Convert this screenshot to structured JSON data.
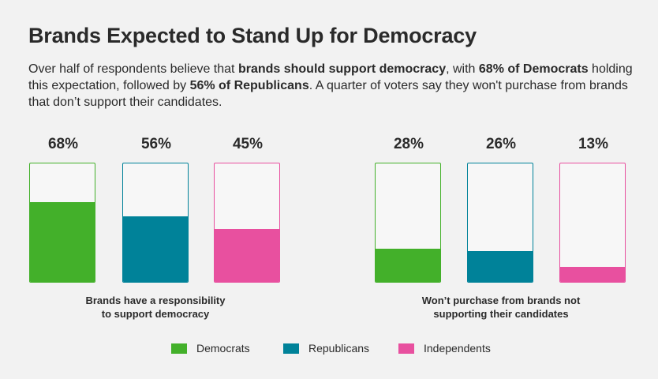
{
  "header": {
    "title": "Brands Expected to Stand Up for Democracy",
    "subtitle": {
      "t1": "Over half of respondents believe that ",
      "b1": "brands should support democracy",
      "t2": ", with ",
      "b2": "68% of Democrats",
      "t3": " holding this expectation, followed by ",
      "b3": "56% of Republicans",
      "t4": ". A quarter of voters say they won't purchase from brands that don’t support their candidates."
    }
  },
  "colors": {
    "democrats": "#43b02a",
    "republicans": "#008299",
    "independents": "#e8509f"
  },
  "chart_data": {
    "type": "bar",
    "title": "Brands Expected to Stand Up for Democracy",
    "ylim": [
      0,
      100
    ],
    "categories": [
      "Brands have a responsibility to support democracy",
      "Won’t purchase from brands not supporting their candidates"
    ],
    "series": [
      {
        "name": "Democrats",
        "values": [
          68,
          28
        ],
        "labels": [
          "68%",
          "28%"
        ]
      },
      {
        "name": "Republicans",
        "values": [
          56,
          26
        ],
        "labels": [
          "56%",
          "26%"
        ]
      },
      {
        "name": "Independents",
        "values": [
          45,
          13
        ],
        "labels": [
          "45%",
          "13%"
        ]
      }
    ],
    "group_labels": [
      {
        "line1": "Brands have a responsibility",
        "line2": "to support democracy"
      },
      {
        "line1": "Won’t purchase from brands not",
        "line2": "supporting their candidates"
      }
    ],
    "legend": {
      "position": "bottom"
    }
  }
}
